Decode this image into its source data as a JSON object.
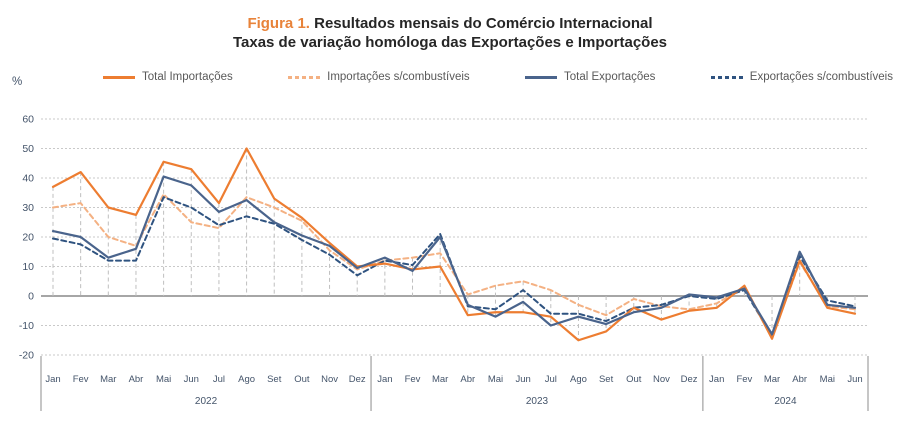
{
  "title": {
    "figure_label": "Figura 1.",
    "line1": "Resultados mensais do Comércio Internacional",
    "line2": "Taxas de variação homóloga das Exportações e Importações"
  },
  "y_axis_unit": "%",
  "chart_data": {
    "type": "line",
    "title": "Resultados mensais do Comércio Internacional — Taxas de variação homóloga das Exportações e Importações",
    "ylabel": "%",
    "ylim": [
      -20,
      60
    ],
    "y_ticks": [
      60,
      50,
      40,
      30,
      20,
      10,
      0,
      -10,
      -20
    ],
    "grid": true,
    "legend_position": "top",
    "x": [
      "Jan",
      "Fev",
      "Mar",
      "Abr",
      "Mai",
      "Jun",
      "Jul",
      "Ago",
      "Set",
      "Out",
      "Nov",
      "Dez",
      "Jan",
      "Fev",
      "Mar",
      "Abr",
      "Mai",
      "Jun",
      "Jul",
      "Ago",
      "Set",
      "Out",
      "Nov",
      "Dez",
      "Jan",
      "Fev",
      "Mar",
      "Abr",
      "Mai",
      "Jun"
    ],
    "year_groups": [
      {
        "label": "2022",
        "months": 12
      },
      {
        "label": "2023",
        "months": 12
      },
      {
        "label": "2024",
        "months": 6
      }
    ],
    "series": [
      {
        "name": "Total Importações",
        "color": "#ED7D31",
        "style": "solid",
        "values": [
          37,
          42,
          30,
          27.5,
          45.5,
          43,
          31.5,
          50,
          33,
          26.5,
          18,
          10,
          11,
          9,
          10,
          -6.5,
          -5.5,
          -5.5,
          -7,
          -15,
          -12,
          -4,
          -8,
          -5,
          -4,
          3.5,
          -14.5,
          12,
          -4,
          -6
        ]
      },
      {
        "name": "Importações s/combustíveis",
        "color": "#F4B183",
        "style": "dashed",
        "values": [
          30,
          31.5,
          20,
          17,
          34.5,
          25,
          23,
          33.5,
          30,
          25.5,
          15.5,
          9,
          12,
          13,
          14.5,
          0.5,
          3.5,
          5,
          2,
          -3,
          -6.5,
          -1,
          -3.5,
          -4.5,
          -2.5,
          3,
          -14,
          11.5,
          -3.5,
          -4.5
        ]
      },
      {
        "name": "Total Exportações",
        "color": "#4A648C",
        "style": "solid",
        "values": [
          22,
          20,
          13,
          16,
          40.5,
          37.5,
          28.5,
          32.5,
          25,
          20.5,
          17,
          9.5,
          13,
          8.5,
          20,
          -3,
          -7,
          -2,
          -10,
          -7,
          -9.5,
          -5.5,
          -4,
          0.5,
          -0.5,
          2.5,
          -13,
          15,
          -3,
          -4
        ]
      },
      {
        "name": "Exportações s/combustíveis",
        "color": "#2F5380",
        "style": "dashed",
        "values": [
          19.5,
          17.5,
          12,
          12,
          33.5,
          30,
          24,
          27,
          24.5,
          19,
          14,
          7,
          12,
          10.5,
          21,
          -3.5,
          -4.5,
          2,
          -6,
          -6,
          -8.5,
          -4,
          -3,
          0,
          -1,
          2,
          -13.5,
          13.5,
          -1.5,
          -3.5
        ]
      }
    ]
  }
}
